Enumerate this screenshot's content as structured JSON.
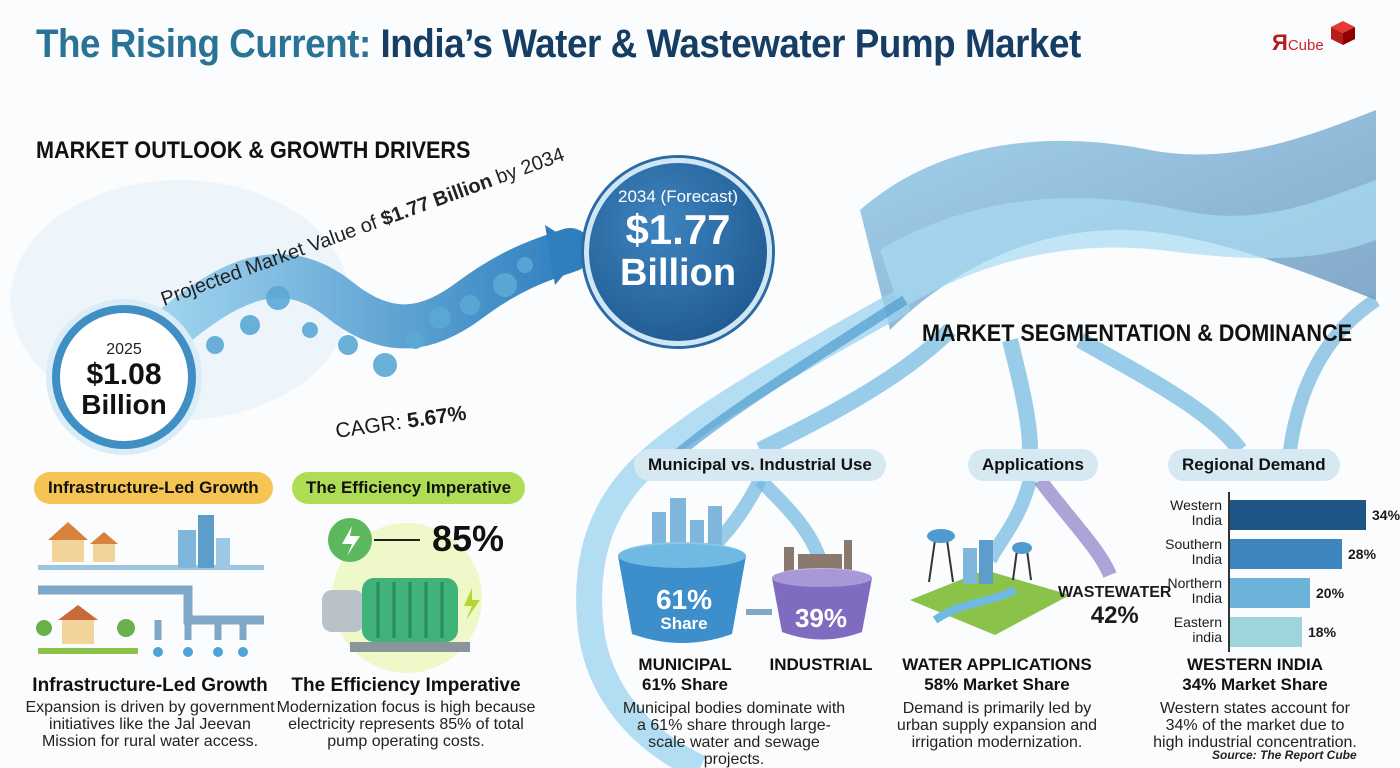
{
  "header": {
    "title_part1": "The Rising Current:",
    "title_part2": "India’s Water & Wastewater Pump Market",
    "logo_main": "Я",
    "logo_sub": "Cube"
  },
  "outlook": {
    "heading": "MARKET OUTLOOK & GROWTH DRIVERS",
    "projected_prefix": "Projected Market Value of ",
    "projected_value": "$1.77 Billion",
    "projected_suffix": " by 2034",
    "start_year": "2025",
    "start_value": "$1.08",
    "start_unit": "Billion",
    "end_label": "2034 (Forecast)",
    "end_value": "$1.77",
    "end_unit": "Billion",
    "cagr_label": "CAGR: ",
    "cagr_value": "5.67%"
  },
  "drivers": [
    {
      "pill": "Infrastructure-Led Growth",
      "heading": "Infrastructure-Led Growth",
      "text": "Expansion is driven by government initiatives like the Jal Jeevan Mission for rural water access."
    },
    {
      "pill": "The Efficiency Imperative",
      "heading": "The Efficiency Imperative",
      "stat": "85%",
      "text": "Modernization focus is high because electricity represents 85% of total pump operating costs."
    }
  ],
  "segmentation": {
    "heading": "MARKET SEGMENTATION & DOMINANCE",
    "municipal": {
      "pill": "Municipal vs. Industrial Use",
      "municipal_pct": "61%",
      "share_word": "Share",
      "industrial_pct": "39%",
      "label_municipal": "MUNICIPAL",
      "label_municipal_share": "61% Share",
      "label_industrial": "INDUSTRIAL",
      "text": "Municipal bodies dominate with a 61% share through large-scale water and sewage projects."
    },
    "applications": {
      "pill": "Applications",
      "wastewater_label": "WASTEWATER",
      "wastewater_pct": "42%",
      "heading1": "WATER APPLICATIONS",
      "heading2": "58% Market Share",
      "text": "Demand is primarily led by urban supply expansion and irrigation modernization."
    },
    "regional": {
      "pill": "Regional Demand",
      "heading1": "WESTERN INDIA",
      "heading2": "34% Market Share",
      "text": "Western states account for 34% of the market due to high industrial concentration."
    }
  },
  "chart_data": {
    "type": "bar",
    "orientation": "horizontal",
    "categories": [
      "Western India",
      "Southern India",
      "Northern India",
      "Eastern india"
    ],
    "category_lines": [
      [
        "Western",
        "India"
      ],
      [
        "Southern",
        "India"
      ],
      [
        "Northern",
        "India"
      ],
      [
        "Eastern",
        "india"
      ]
    ],
    "values": [
      34,
      28,
      20,
      18
    ],
    "value_labels": [
      "34%",
      "28%",
      "20%",
      "18%"
    ],
    "colors": [
      "#1f5585",
      "#3d86bd",
      "#6bb3d9",
      "#9fd4dd"
    ],
    "xlim": [
      0,
      40
    ]
  },
  "source": "Source: The Report Cube"
}
